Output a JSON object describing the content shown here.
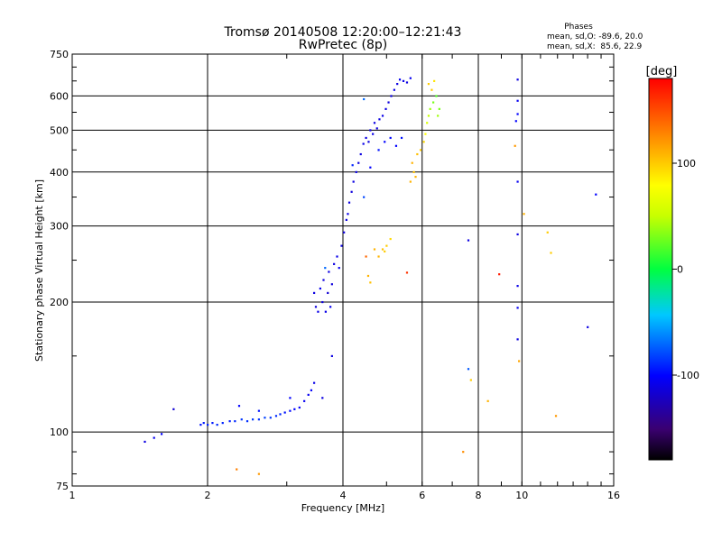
{
  "chart_data": {
    "type": "scatter",
    "title": "Tromsø 20140508 12:20:00–12:21:43",
    "subtitle": "RwPretec (8p)",
    "xlabel": "Frequency [MHz]",
    "ylabel": "Stationary phase Virtual Height [km]",
    "x_scale": "log",
    "y_scale": "log",
    "xlim": [
      1,
      16
    ],
    "ylim": [
      75,
      750
    ],
    "x_ticks": [
      1,
      2,
      4,
      6,
      8,
      10,
      16
    ],
    "y_ticks": [
      75,
      100,
      200,
      300,
      400,
      500,
      600,
      750
    ],
    "grid": true,
    "phases_box": {
      "title": "Phases",
      "line_o": "mean, sd,O: -89.6, 20.0",
      "line_x": "mean, sd,X:  85.6, 22.9"
    },
    "colorbar": {
      "label": "[deg]",
      "range": [
        -180,
        180
      ],
      "ticks": [
        -100,
        0,
        100
      ]
    },
    "series": [
      {
        "points": [
          [
            1.45,
            95,
            -110
          ],
          [
            1.52,
            97,
            -105
          ],
          [
            1.58,
            99,
            -100
          ],
          [
            1.68,
            113,
            -115
          ],
          [
            1.93,
            104,
            -95
          ],
          [
            1.96,
            105,
            -92
          ],
          [
            2.0,
            104,
            -90
          ],
          [
            2.05,
            105,
            -93
          ],
          [
            2.1,
            104,
            -88
          ],
          [
            2.16,
            105,
            -90
          ],
          [
            2.24,
            106,
            -92
          ],
          [
            2.3,
            106,
            -89
          ],
          [
            2.38,
            107,
            -85
          ],
          [
            2.45,
            106,
            -87
          ],
          [
            2.52,
            107,
            -84
          ],
          [
            2.6,
            107,
            -86
          ],
          [
            2.68,
            108,
            -82
          ],
          [
            2.76,
            108,
            -85
          ],
          [
            2.84,
            109,
            -88
          ],
          [
            2.9,
            110,
            -90
          ],
          [
            2.97,
            111,
            -95
          ],
          [
            3.05,
            112,
            -98
          ],
          [
            3.12,
            113,
            -100
          ],
          [
            3.2,
            114,
            -102
          ],
          [
            3.28,
            118,
            -105
          ],
          [
            3.35,
            122,
            -105
          ],
          [
            3.4,
            125,
            -102
          ],
          [
            3.45,
            130,
            -108
          ],
          [
            2.35,
            115,
            -100
          ],
          [
            2.6,
            112,
            -95
          ],
          [
            3.05,
            120,
            -100
          ],
          [
            3.6,
            120,
            -110
          ],
          [
            3.78,
            150,
            -110
          ],
          [
            3.45,
            210,
            -110
          ],
          [
            3.48,
            195,
            -112
          ],
          [
            3.52,
            190,
            -108
          ],
          [
            3.56,
            215,
            -105
          ],
          [
            3.6,
            200,
            -110
          ],
          [
            3.62,
            225,
            -112
          ],
          [
            3.66,
            190,
            -108
          ],
          [
            3.7,
            210,
            -115
          ],
          [
            3.72,
            235,
            -110
          ],
          [
            3.75,
            195,
            -105
          ],
          [
            3.78,
            220,
            -112
          ],
          [
            3.82,
            245,
            -110
          ],
          [
            3.88,
            255,
            -108
          ],
          [
            3.92,
            240,
            -105
          ],
          [
            3.97,
            270,
            -110
          ],
          [
            4.02,
            290,
            -112
          ],
          [
            4.07,
            310,
            -110
          ],
          [
            4.1,
            320,
            -108
          ],
          [
            4.13,
            340,
            -110
          ],
          [
            4.18,
            360,
            -112
          ],
          [
            4.22,
            380,
            -110
          ],
          [
            4.28,
            400,
            -108
          ],
          [
            4.33,
            420,
            -112
          ],
          [
            4.38,
            440,
            -110
          ],
          [
            4.44,
            465,
            -108
          ],
          [
            4.5,
            480,
            -110
          ],
          [
            4.56,
            470,
            -112
          ],
          [
            4.6,
            500,
            -110
          ],
          [
            4.66,
            490,
            -108
          ],
          [
            4.7,
            520,
            -110
          ],
          [
            4.76,
            505,
            -112
          ],
          [
            4.82,
            530,
            -110
          ],
          [
            4.9,
            540,
            -108
          ],
          [
            4.98,
            560,
            -110
          ],
          [
            5.05,
            580,
            -112
          ],
          [
            5.12,
            600,
            -110
          ],
          [
            5.2,
            620,
            -108
          ],
          [
            5.28,
            640,
            -110
          ],
          [
            5.35,
            655,
            -105
          ],
          [
            5.45,
            650,
            -108
          ],
          [
            5.55,
            645,
            -110
          ],
          [
            5.65,
            660,
            -105
          ],
          [
            4.6,
            410,
            -100
          ],
          [
            4.8,
            450,
            -95
          ],
          [
            4.95,
            470,
            -100
          ],
          [
            5.1,
            480,
            -98
          ],
          [
            5.25,
            460,
            -100
          ],
          [
            5.4,
            480,
            -95
          ],
          [
            4.2,
            415,
            -90
          ],
          [
            4.45,
            350,
            -80
          ],
          [
            3.65,
            240,
            -70
          ],
          [
            4.45,
            590,
            -70
          ],
          [
            9.78,
            655,
            -110
          ],
          [
            9.78,
            585,
            -105
          ],
          [
            9.78,
            545,
            -100
          ],
          [
            9.78,
            380,
            -105
          ],
          [
            9.78,
            287,
            -110
          ],
          [
            9.78,
            218,
            -108
          ],
          [
            9.78,
            194,
            -105
          ],
          [
            9.78,
            164,
            -110
          ],
          [
            9.7,
            525,
            -100
          ],
          [
            7.6,
            278,
            -110
          ],
          [
            14.6,
            355,
            -100
          ],
          [
            14.0,
            175,
            -110
          ],
          [
            7.6,
            140,
            -75
          ]
        ]
      },
      {
        "points": [
          [
            4.8,
            255,
            110
          ],
          [
            4.9,
            265,
            105
          ],
          [
            5.0,
            270,
            100
          ],
          [
            5.1,
            280,
            95
          ],
          [
            4.7,
            265,
            110
          ],
          [
            4.95,
            262,
            100
          ],
          [
            4.55,
            230,
            110
          ],
          [
            4.6,
            222,
            105
          ],
          [
            5.7,
            420,
            110
          ],
          [
            5.85,
            440,
            105
          ],
          [
            5.95,
            450,
            100
          ],
          [
            6.05,
            470,
            95
          ],
          [
            5.75,
            400,
            105
          ],
          [
            6.1,
            490,
            80
          ],
          [
            6.15,
            520,
            60
          ],
          [
            6.2,
            540,
            50
          ],
          [
            6.25,
            560,
            40
          ],
          [
            6.35,
            580,
            30
          ],
          [
            6.45,
            600,
            20
          ],
          [
            6.3,
            620,
            100
          ],
          [
            6.2,
            640,
            100
          ],
          [
            6.38,
            650,
            90
          ],
          [
            6.5,
            540,
            40
          ],
          [
            6.55,
            560,
            30
          ],
          [
            5.8,
            390,
            110
          ],
          [
            5.65,
            380,
            110
          ],
          [
            7.4,
            90,
            125
          ],
          [
            8.4,
            118,
            110
          ],
          [
            9.65,
            460,
            120
          ],
          [
            10.1,
            320,
            110
          ],
          [
            9.85,
            146,
            115
          ],
          [
            11.4,
            290,
            100
          ],
          [
            11.6,
            260,
            100
          ],
          [
            11.9,
            109,
            120
          ],
          [
            2.32,
            82,
            130
          ],
          [
            2.6,
            80,
            120
          ],
          [
            7.7,
            132,
            100
          ]
        ]
      },
      {
        "points": [
          [
            4.5,
            255,
            140
          ],
          [
            5.55,
            234,
            160
          ],
          [
            8.9,
            232,
            170
          ]
        ]
      }
    ]
  }
}
